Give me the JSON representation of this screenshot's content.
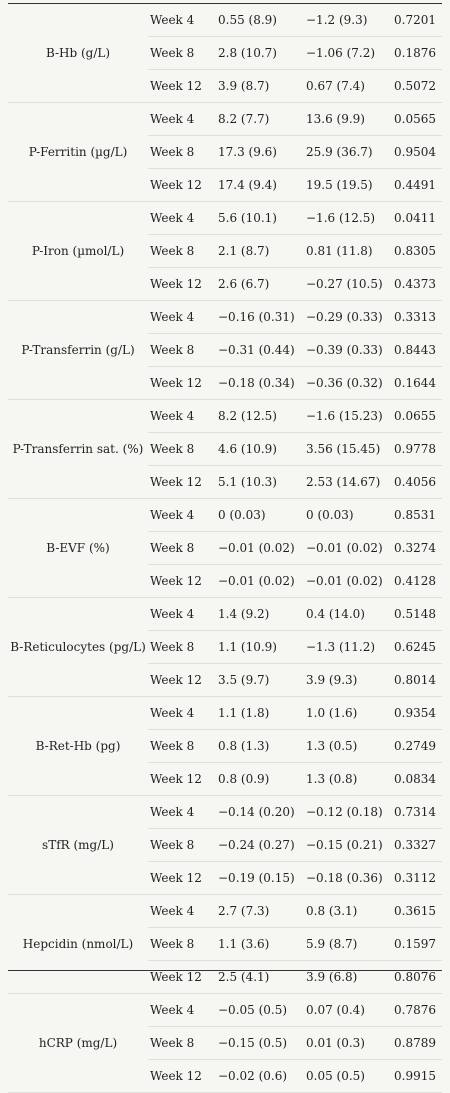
{
  "groups": [
    {
      "parameter": "B-Hb (g/L)",
      "rows": [
        {
          "week": "Week 4",
          "a": "0.55 (8.9)",
          "b": "−1.2 (9.3)",
          "p": "0.7201"
        },
        {
          "week": "Week 8",
          "a": "2.8 (10.7)",
          "b": "−1.06 (7.2)",
          "p": "0.1876"
        },
        {
          "week": "Week 12",
          "a": "3.9 (8.7)",
          "b": "0.67 (7.4)",
          "p": "0.5072"
        }
      ]
    },
    {
      "parameter": "P-Ferritin (µg/L)",
      "rows": [
        {
          "week": "Week 4",
          "a": "8.2 (7.7)",
          "b": "13.6 (9.9)",
          "p": "0.0565"
        },
        {
          "week": "Week 8",
          "a": "17.3 (9.6)",
          "b": "25.9 (36.7)",
          "p": "0.9504"
        },
        {
          "week": "Week 12",
          "a": "17.4 (9.4)",
          "b": "19.5 (19.5)",
          "p": "0.4491"
        }
      ]
    },
    {
      "parameter": "P-Iron (µmol/L)",
      "rows": [
        {
          "week": "Week 4",
          "a": "5.6 (10.1)",
          "b": "−1.6 (12.5)",
          "p": "0.0411"
        },
        {
          "week": "Week 8",
          "a": "2.1 (8.7)",
          "b": "0.81 (11.8)",
          "p": "0.8305"
        },
        {
          "week": "Week 12",
          "a": "2.6 (6.7)",
          "b": "−0.27 (10.5)",
          "p": "0.4373"
        }
      ]
    },
    {
      "parameter": "P-Transferrin (g/L)",
      "rows": [
        {
          "week": "Week 4",
          "a": "−0.16 (0.31)",
          "b": "−0.29 (0.33)",
          "p": "0.3313"
        },
        {
          "week": "Week 8",
          "a": "−0.31 (0.44)",
          "b": "−0.39 (0.33)",
          "p": "0.8443"
        },
        {
          "week": "Week 12",
          "a": "−0.18 (0.34)",
          "b": "−0.36 (0.32)",
          "p": "0.1644"
        }
      ]
    },
    {
      "parameter": "P-Transferrin sat. (%)",
      "rows": [
        {
          "week": "Week 4",
          "a": "8.2 (12.5)",
          "b": "−1.6 (15.23)",
          "p": "0.0655"
        },
        {
          "week": "Week 8",
          "a": "4.6 (10.9)",
          "b": "3.56 (15.45)",
          "p": "0.9778"
        },
        {
          "week": "Week 12",
          "a": "5.1 (10.3)",
          "b": "2.53 (14.67)",
          "p": "0.4056"
        }
      ]
    },
    {
      "parameter": "B-EVF (%)",
      "rows": [
        {
          "week": "Week 4",
          "a": "0 (0.03)",
          "b": "0 (0.03)",
          "p": "0.8531"
        },
        {
          "week": "Week 8",
          "a": "−0.01 (0.02)",
          "b": "−0.01 (0.02)",
          "p": "0.3274"
        },
        {
          "week": "Week 12",
          "a": "−0.01 (0.02)",
          "b": "−0.01 (0.02)",
          "p": "0.4128"
        }
      ]
    },
    {
      "parameter": "B-Reticulocytes (pg/L)",
      "rows": [
        {
          "week": "Week 4",
          "a": "1.4 (9.2)",
          "b": "0.4 (14.0)",
          "p": "0.5148"
        },
        {
          "week": "Week 8",
          "a": "1.1 (10.9)",
          "b": "−1.3 (11.2)",
          "p": "0.6245"
        },
        {
          "week": "Week 12",
          "a": "3.5 (9.7)",
          "b": "3.9 (9.3)",
          "p": "0.8014"
        }
      ]
    },
    {
      "parameter": "B-Ret-Hb (pg)",
      "rows": [
        {
          "week": "Week 4",
          "a": "1.1 (1.8)",
          "b": "1.0 (1.6)",
          "p": "0.9354"
        },
        {
          "week": "Week 8",
          "a": "0.8 (1.3)",
          "b": "1.3 (0.5)",
          "p": "0.2749"
        },
        {
          "week": "Week 12",
          "a": "0.8 (0.9)",
          "b": "1.3 (0.8)",
          "p": "0.0834"
        }
      ]
    },
    {
      "parameter": "sTfR (mg/L)",
      "rows": [
        {
          "week": "Week 4",
          "a": "−0.14 (0.20)",
          "b": "−0.12 (0.18)",
          "p": "0.7314"
        },
        {
          "week": "Week 8",
          "a": "−0.24 (0.27)",
          "b": "−0.15 (0.21)",
          "p": "0.3327"
        },
        {
          "week": "Week 12",
          "a": "−0.19 (0.15)",
          "b": "−0.18 (0.36)",
          "p": "0.3112"
        }
      ]
    },
    {
      "parameter": "Hepcidin (nmol/L)",
      "rows": [
        {
          "week": "Week 4",
          "a": "2.7 (7.3)",
          "b": "0.8 (3.1)",
          "p": "0.3615"
        },
        {
          "week": "Week 8",
          "a": "1.1 (3.6)",
          "b": "5.9 (8.7)",
          "p": "0.1597"
        },
        {
          "week": "Week 12",
          "a": "2.5 (4.1)",
          "b": "3.9 (6.8)",
          "p": "0.8076"
        }
      ]
    },
    {
      "parameter": "hCRP (mg/L)",
      "rows": [
        {
          "week": "Week 4",
          "a": "−0.05 (0.5)",
          "b": "0.07 (0.4)",
          "p": "0.7876"
        },
        {
          "week": "Week 8",
          "a": "−0.15 (0.5)",
          "b": "0.01 (0.3)",
          "p": "0.8789"
        },
        {
          "week": "Week 12",
          "a": "−0.02 (0.6)",
          "b": "0.05 (0.5)",
          "p": "0.9915"
        }
      ]
    }
  ]
}
